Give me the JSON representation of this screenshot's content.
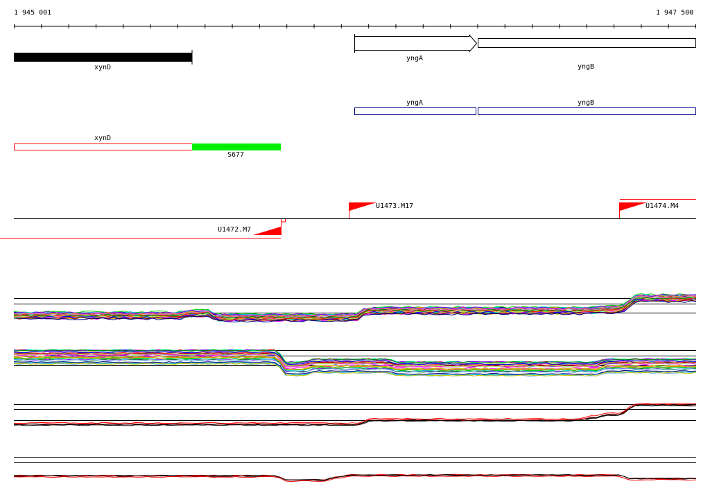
{
  "ruler": {
    "start_label": "1 945 001",
    "end_label": "1 947 500",
    "start": 1945001,
    "end": 1947500,
    "tick_count": 26
  },
  "tracks": {
    "genes": [
      {
        "name": "xynD",
        "start": 1945001,
        "end": 1945655,
        "style": "filled-black"
      },
      {
        "name": "yngA",
        "start": 1946251,
        "end": 1946693,
        "style": "arrow-right"
      },
      {
        "name": "yngB",
        "start": 1946701,
        "end": 1947500,
        "style": "open-box"
      }
    ],
    "blue_features": [
      {
        "name": "yngA",
        "start": 1946251,
        "end": 1946693
      },
      {
        "name": "yngB",
        "start": 1946701,
        "end": 1947500
      }
    ],
    "red_features": [
      {
        "name": "xynD",
        "start": 1945001,
        "end": 1945655,
        "style": "open-red"
      }
    ],
    "green_features": [
      {
        "name": "S677",
        "start": 1945655,
        "end": 1945980
      }
    ],
    "transcription_units": [
      {
        "name": "U1472.M7",
        "strand": "minus",
        "pos": 1945980
      },
      {
        "name": "U1473.M17",
        "strand": "plus",
        "pos": 1946231
      },
      {
        "name": "U1474.M4",
        "strand": "plus",
        "pos": 1947226
      }
    ]
  },
  "colors": {
    "red": "#ff0000",
    "green": "#00ee00",
    "blue": "#000080",
    "black": "#000000"
  }
}
